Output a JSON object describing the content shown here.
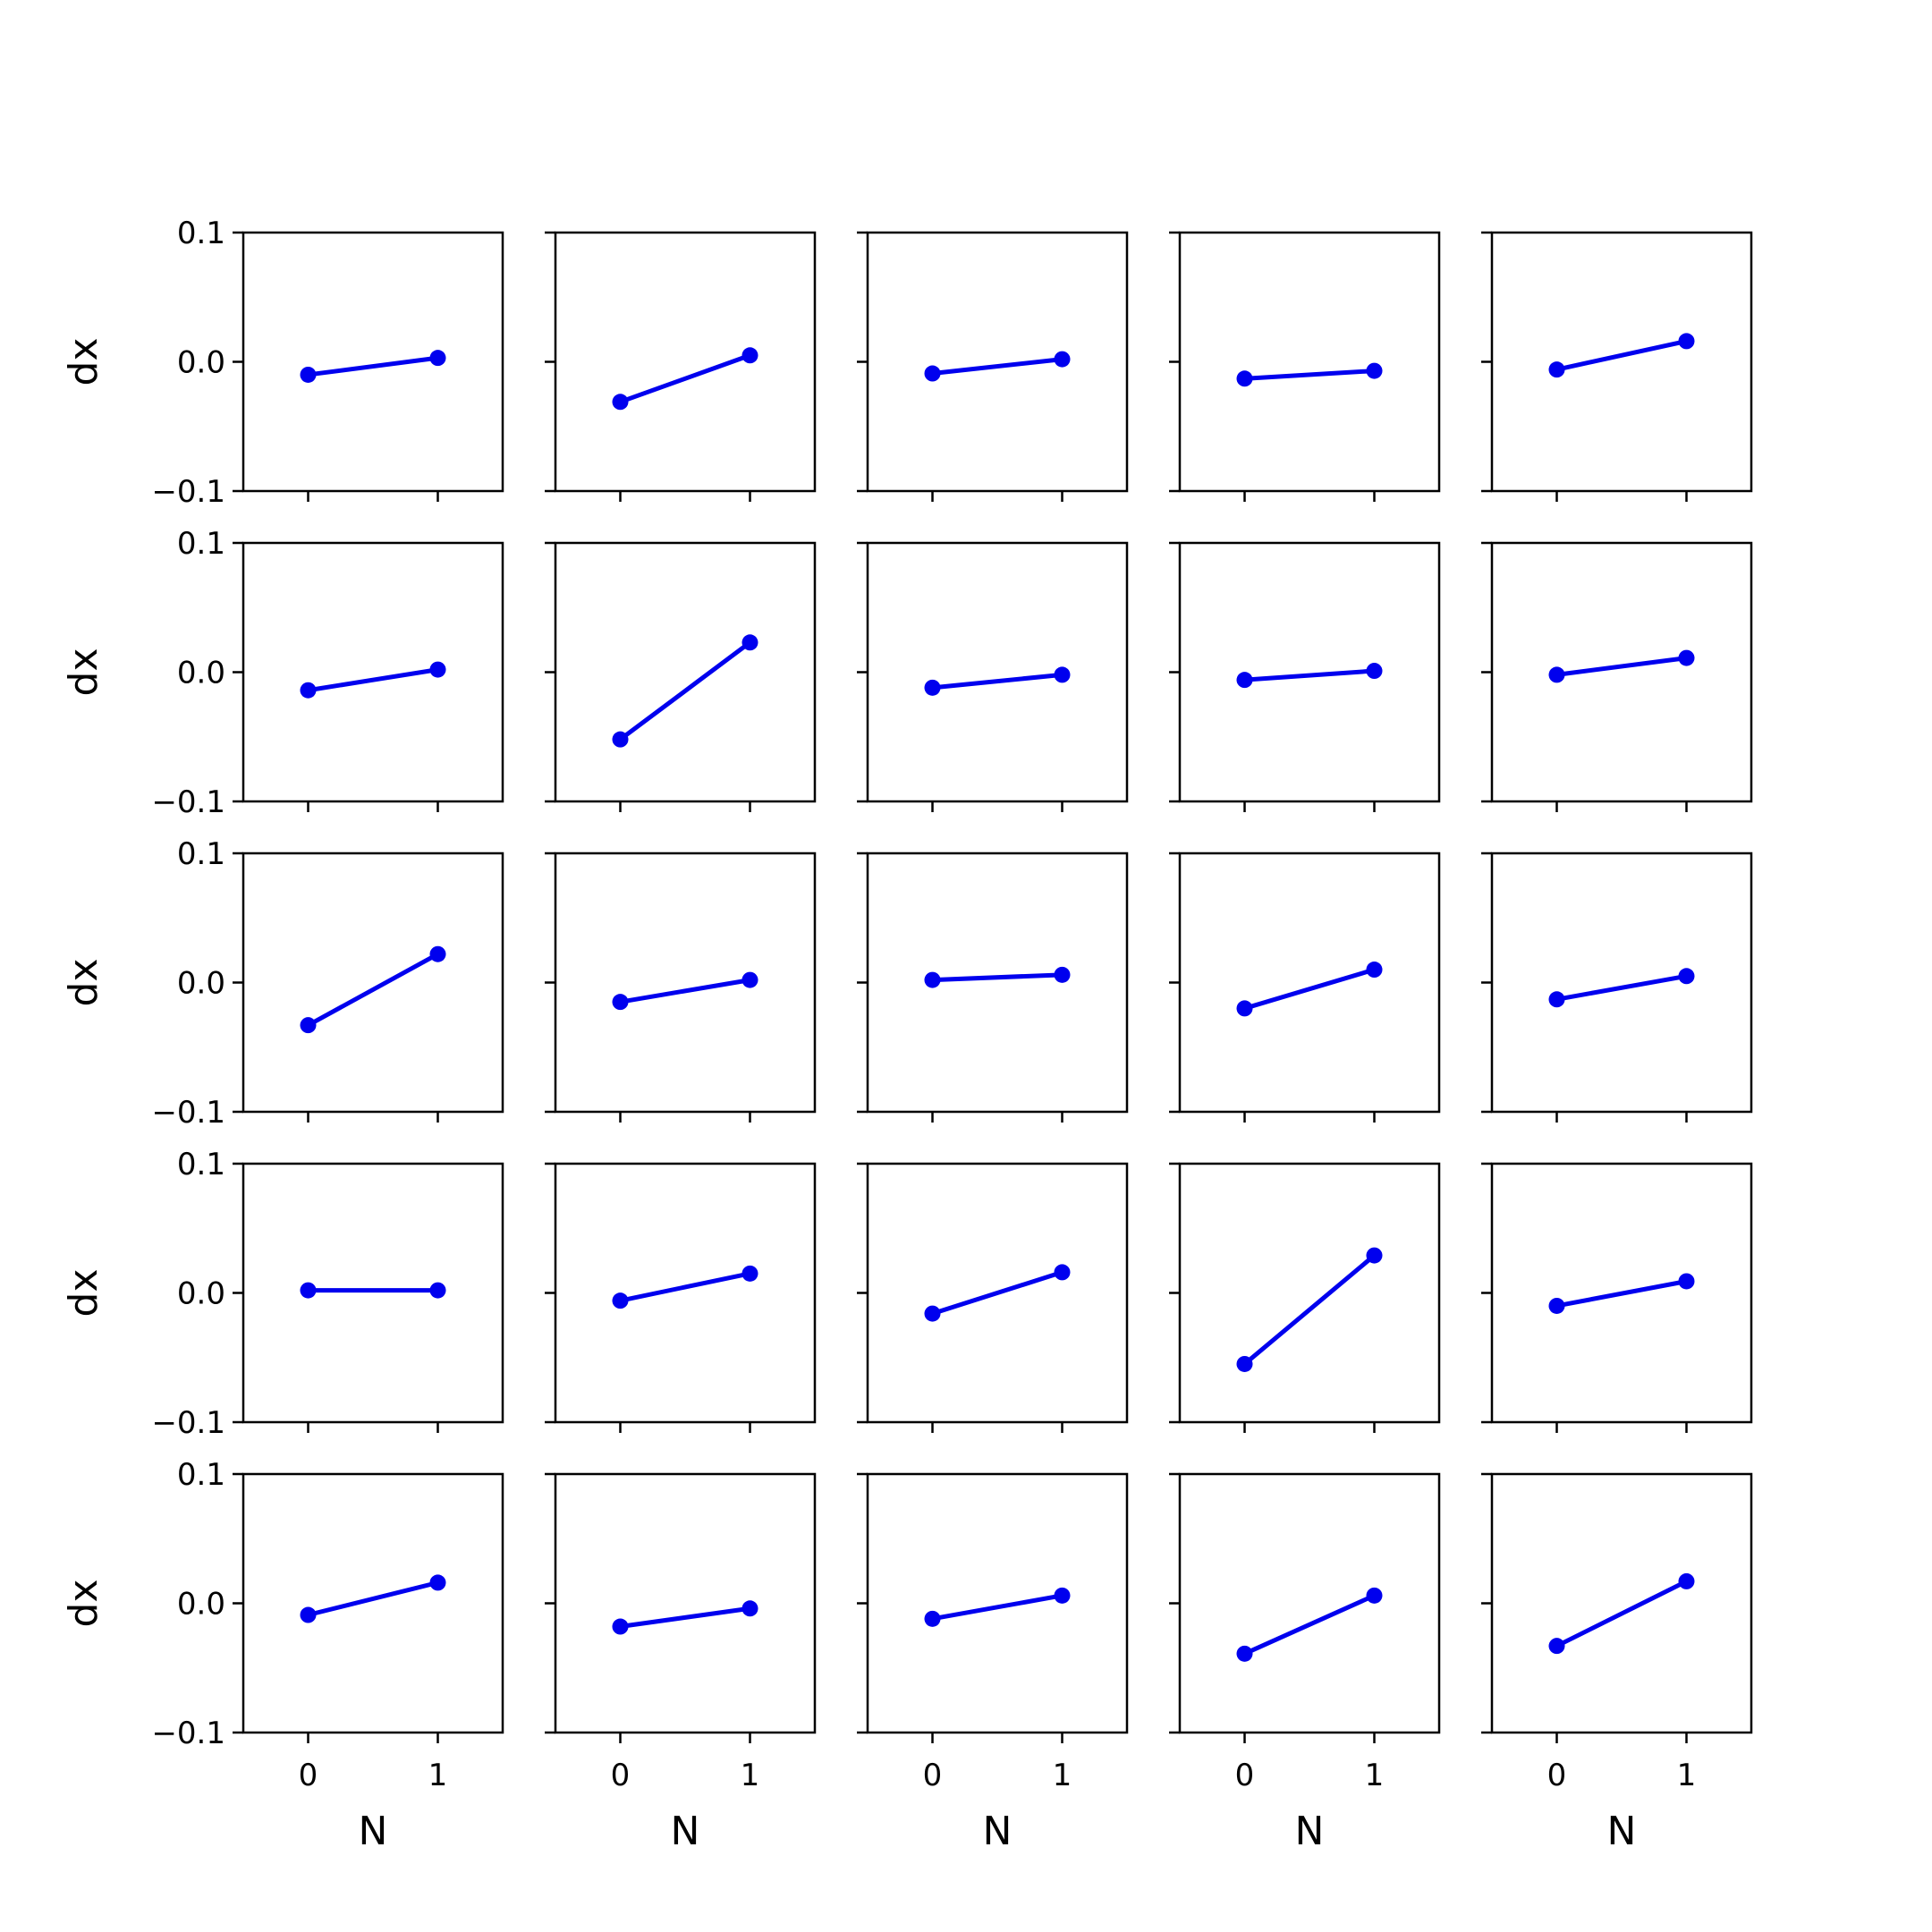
{
  "chart_data": {
    "type": "line",
    "layout": "5x5 grid of subplots, shared axes",
    "line_color": "#0000ee",
    "marker": "filled circle",
    "grid": false,
    "ylim": [
      -0.1,
      0.1
    ],
    "xlim": [
      -0.5,
      1.5
    ],
    "x_ticks": [
      "0",
      "1"
    ],
    "y_ticks": [
      "−0.1",
      "0.0",
      "0.1"
    ],
    "xlabel": "N",
    "ylabel": "dx",
    "x": [
      0,
      1
    ],
    "subplots": [
      {
        "values": [
          -0.01,
          0.003
        ]
      },
      {
        "values": [
          -0.031,
          0.005
        ]
      },
      {
        "values": [
          -0.009,
          0.002
        ]
      },
      {
        "values": [
          -0.013,
          -0.007
        ]
      },
      {
        "values": [
          -0.006,
          0.016
        ]
      },
      {
        "values": [
          -0.014,
          0.002
        ]
      },
      {
        "values": [
          -0.052,
          0.023
        ]
      },
      {
        "values": [
          -0.012,
          -0.002
        ]
      },
      {
        "values": [
          -0.006,
          0.001
        ]
      },
      {
        "values": [
          -0.002,
          0.011
        ]
      },
      {
        "values": [
          -0.033,
          0.022
        ]
      },
      {
        "values": [
          -0.015,
          0.002
        ]
      },
      {
        "values": [
          0.002,
          0.006
        ]
      },
      {
        "values": [
          -0.02,
          0.01
        ]
      },
      {
        "values": [
          -0.013,
          0.005
        ]
      },
      {
        "values": [
          0.002,
          0.002
        ]
      },
      {
        "values": [
          -0.006,
          0.015
        ]
      },
      {
        "values": [
          -0.016,
          0.016
        ]
      },
      {
        "values": [
          -0.055,
          0.029
        ]
      },
      {
        "values": [
          -0.01,
          0.009
        ]
      },
      {
        "values": [
          -0.009,
          0.016
        ]
      },
      {
        "values": [
          -0.018,
          -0.004
        ]
      },
      {
        "values": [
          -0.012,
          0.006
        ]
      },
      {
        "values": [
          -0.039,
          0.006
        ]
      },
      {
        "values": [
          -0.033,
          0.017
        ]
      }
    ]
  }
}
